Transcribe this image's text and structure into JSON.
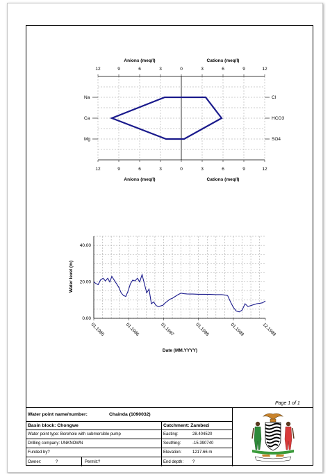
{
  "page": {
    "page_label": "Page 1 of 1"
  },
  "stiff": {
    "top_left_title": "Anions (meq/l)",
    "top_right_title": "Cations (meq/l)",
    "bottom_left_title": "Anions (meq/l)",
    "bottom_right_title": "Cations (meq/l)",
    "ticks": [
      "12",
      "9",
      "6",
      "3",
      "0",
      "3",
      "6",
      "9",
      "12"
    ],
    "left_labels": [
      "Na",
      "Ca",
      "Mg"
    ],
    "right_labels": [
      "Cl",
      "HCO3",
      "SO4"
    ]
  },
  "chart_data": [
    {
      "type": "polygon",
      "x_range": [
        -12,
        12
      ],
      "rows": [
        "Na/Cl",
        "Ca/HCO3",
        "Mg/SO4"
      ],
      "left_values": [
        2.4,
        10.0,
        2.2
      ],
      "right_values": [
        3.5,
        5.8,
        0.4
      ]
    },
    {
      "type": "line",
      "xlabel": "Date (MM.YYYY)",
      "ylabel": "Water level (m)",
      "ylim": [
        0,
        45
      ],
      "y_ticks": [
        "0.00",
        "20.00",
        "40.00"
      ],
      "x_ticks": [
        "01.1995",
        "01.1996",
        "01.1997",
        "01.1998",
        "01.1999",
        "12.1999"
      ],
      "x_tick_values": [
        0,
        12,
        24,
        36,
        48,
        59
      ],
      "series": [
        {
          "x": [
            0,
            0.8,
            1.5,
            2.3,
            3.2,
            4,
            4.8,
            5.5,
            6.2,
            7,
            7.8,
            8.6,
            9.4,
            10.2,
            11,
            11.8,
            12.6,
            13.4,
            14.2,
            15,
            15.8,
            16.6,
            17.4,
            18.2,
            19,
            19.8,
            20.6,
            21.4,
            22.2,
            23,
            23.8,
            24.6,
            25.4,
            26.2,
            27,
            28,
            29,
            30,
            31,
            32,
            33,
            34,
            36,
            38,
            40,
            42,
            44,
            45,
            46,
            47,
            48,
            49,
            50,
            51,
            52,
            53,
            54,
            55,
            56,
            57,
            58,
            59
          ],
          "y": [
            20,
            19,
            18.5,
            21,
            22,
            20.5,
            22,
            20,
            23,
            21,
            19,
            17,
            14,
            12.5,
            12,
            15,
            19,
            21,
            20.5,
            22,
            20,
            24,
            19,
            14,
            16,
            8,
            9,
            7,
            6.5,
            6.8,
            7.2,
            8.5,
            9.5,
            10.5,
            11,
            12,
            13,
            13.8,
            13.5,
            13.4,
            13.3,
            13.3,
            13.2,
            13.2,
            13.1,
            13,
            13,
            12.8,
            12.5,
            9,
            6,
            4,
            3.5,
            4.5,
            8,
            6.5,
            7,
            7.5,
            8,
            8.2,
            8.5,
            9.5
          ]
        }
      ]
    }
  ],
  "info": {
    "wp_label": "Water point name/number:",
    "wp_value": "Chainda (1090032)",
    "basin": "Basin block:  Chongwe",
    "catchment": "Catchment: Zambezi",
    "type": "Water point type:  Borehole with submersible pump",
    "drilling": "Drilling company:  UNKNOWN",
    "funded": "Funded by?",
    "owner_label": "Owner:",
    "owner_value": "?",
    "permit": "Permit:?",
    "easting_label": "Easting:",
    "easting_value": "28.404520",
    "southing_label": "Southing:",
    "southing_value": "-15.390740",
    "elevation_label": "Elevation:",
    "elevation_value": "1217.66 m",
    "depth_label": "End depth:",
    "depth_value": "?"
  },
  "colors": {
    "line": "#1a1a8c",
    "grid": "#9a9a9a",
    "frame": "#000000"
  }
}
